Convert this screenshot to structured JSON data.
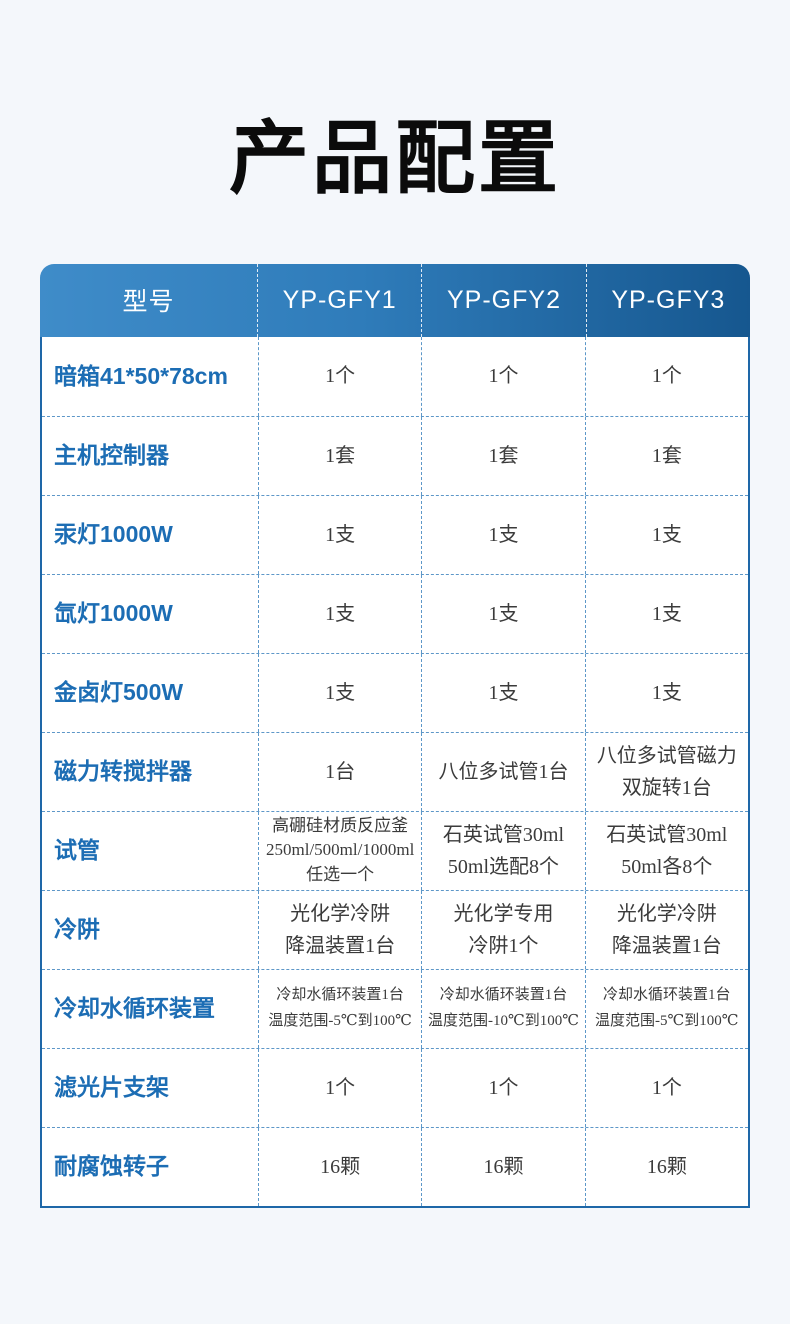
{
  "page": {
    "title": "产品配置",
    "colors": {
      "page_bg": "#f4f7fb",
      "title_text": "#0b0b0b",
      "header_gradient_start": "#3f8cc9",
      "header_gradient_end": "#16578f",
      "header_text": "#ffffff",
      "label_text": "#1c6db4",
      "value_text": "#3b3b3b",
      "table_border_solid": "#1e67a8",
      "table_border_dashed": "#5d97c8"
    }
  },
  "table": {
    "header": {
      "model_label": "型号",
      "models": [
        "YP-GFY1",
        "YP-GFY2",
        "YP-GFY3"
      ]
    },
    "rows": [
      {
        "label": "暗箱41*50*78cm",
        "values": [
          "1个",
          "1个",
          "1个"
        ]
      },
      {
        "label": "主机控制器",
        "values": [
          "1套",
          "1套",
          "1套"
        ]
      },
      {
        "label": "汞灯1000W",
        "values": [
          "1支",
          "1支",
          "1支"
        ]
      },
      {
        "label": "氙灯1000W",
        "values": [
          "1支",
          "1支",
          "1支"
        ]
      },
      {
        "label": "金卤灯500W",
        "values": [
          "1支",
          "1支",
          "1支"
        ]
      },
      {
        "label": "磁力转搅拌器",
        "values": [
          "1台",
          "八位多试管1台",
          "八位多试管磁力\n双旋转1台"
        ]
      },
      {
        "label": "试管",
        "values": [
          "高硼硅材质反应釜\n250ml/500ml/1000ml\n任选一个",
          "石英试管30ml\n50ml选配8个",
          "石英试管30ml\n50ml各8个"
        ]
      },
      {
        "label": "冷阱",
        "values": [
          "光化学冷阱\n降温装置1台",
          "光化学专用\n冷阱1个",
          "光化学冷阱\n降温装置1台"
        ]
      },
      {
        "label": "冷却水循环装置",
        "values": [
          "冷却水循环装置1台\n温度范围-5℃到100℃",
          "冷却水循环装置1台\n温度范围-10℃到100℃",
          "冷却水循环装置1台\n温度范围-5℃到100℃"
        ]
      },
      {
        "label": "滤光片支架",
        "values": [
          "1个",
          "1个",
          "1个"
        ]
      },
      {
        "label": "耐腐蚀转子",
        "values": [
          "16颗",
          "16颗",
          "16颗"
        ]
      }
    ]
  }
}
